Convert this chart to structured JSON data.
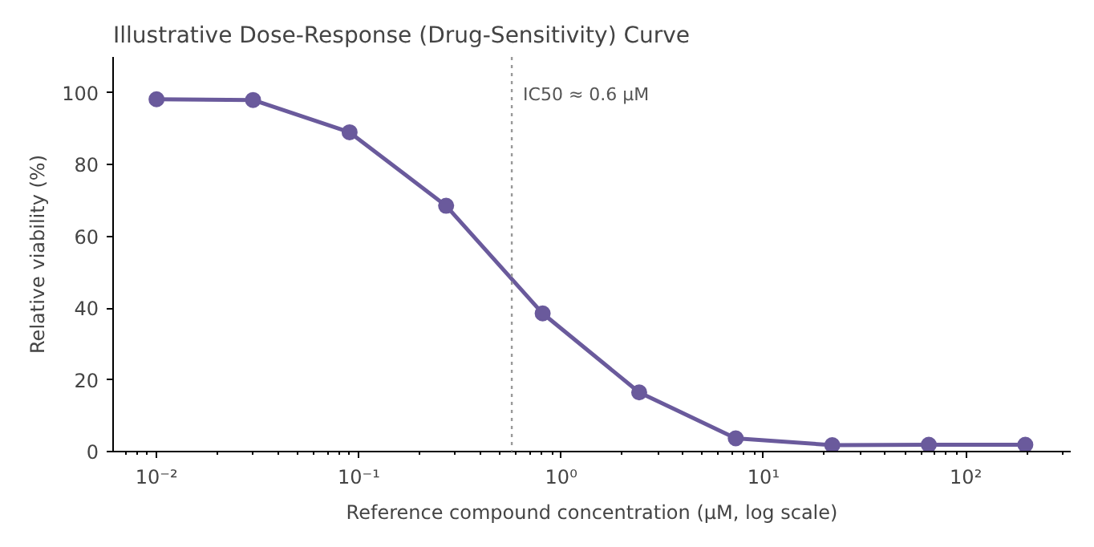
{
  "chart_data": {
    "type": "line",
    "title": "Illustrative Dose-Response (Drug-Sensitivity) Curve",
    "xlabel": "Reference compound concentration (µM, log scale)",
    "ylabel": "Relative viability (%)",
    "x": [
      0.01,
      0.03,
      0.09,
      0.27,
      0.81,
      2.43,
      7.29,
      21.87,
      65.61,
      196.83
    ],
    "series": [
      {
        "color": "#6a5a9c",
        "values": [
          98.2,
          98,
          89,
          68.5,
          38.5,
          16.5,
          3.7,
          1.8,
          1.9,
          1.9
        ]
      }
    ],
    "log": "x",
    "marker": "circle",
    "line_style": "solid",
    "grid": false,
    "xlim": [
      0.0061,
      330
    ],
    "ylim": [
      0,
      110
    ],
    "xticks": [
      {
        "value": 0.01,
        "label": "10⁻²"
      },
      {
        "value": 0.1,
        "label": "10⁻¹"
      },
      {
        "value": 1,
        "label": "10⁰"
      },
      {
        "value": 10,
        "label": "10¹"
      },
      {
        "value": 100,
        "label": "10²"
      }
    ],
    "yticks": [
      0,
      20,
      40,
      60,
      80,
      100
    ],
    "ref_lines": [
      {
        "axis": "x",
        "value": 0.57,
        "label": "IC50 ≈ 0.6 µM",
        "color": "#999999",
        "line_style": "dotted"
      }
    ]
  }
}
